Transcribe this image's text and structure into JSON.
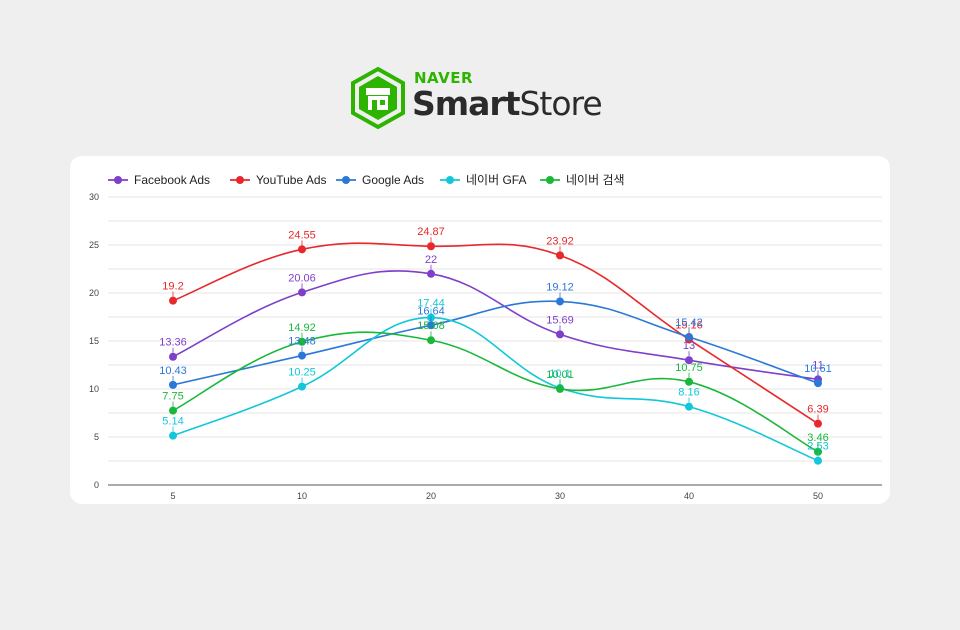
{
  "logo": {
    "naver": "NAVER",
    "smart": "Smart",
    "store": "Store",
    "icon": "smartstore-shop-icon"
  },
  "chart_data": {
    "type": "line",
    "title": "",
    "xlabel": "",
    "ylabel": "",
    "categories": [
      "5",
      "10",
      "20",
      "30",
      "40",
      "50"
    ],
    "ylim": [
      0,
      30
    ],
    "yticks": [
      0,
      5,
      10,
      15,
      20,
      25,
      30
    ],
    "grid": true,
    "legend": "top-left",
    "series": [
      {
        "name": "Facebook Ads",
        "color": "#7e3fc9",
        "values": [
          13.36,
          20.06,
          22,
          15.69,
          13,
          11
        ]
      },
      {
        "name": "YouTube Ads",
        "color": "#e8282b",
        "values": [
          19.2,
          24.55,
          24.87,
          23.92,
          15.16,
          6.39
        ]
      },
      {
        "name": "Google Ads",
        "color": "#2a78d8",
        "values": [
          10.43,
          13.48,
          16.64,
          19.12,
          15.42,
          10.61
        ]
      },
      {
        "name": "네이버 GFA",
        "color": "#12c7d9",
        "values": [
          5.14,
          10.25,
          17.44,
          10.1,
          8.16,
          2.53
        ]
      },
      {
        "name": "네이버 검색",
        "color": "#19b83a",
        "values": [
          7.75,
          14.92,
          15.08,
          10.01,
          10.75,
          3.46
        ]
      }
    ]
  }
}
